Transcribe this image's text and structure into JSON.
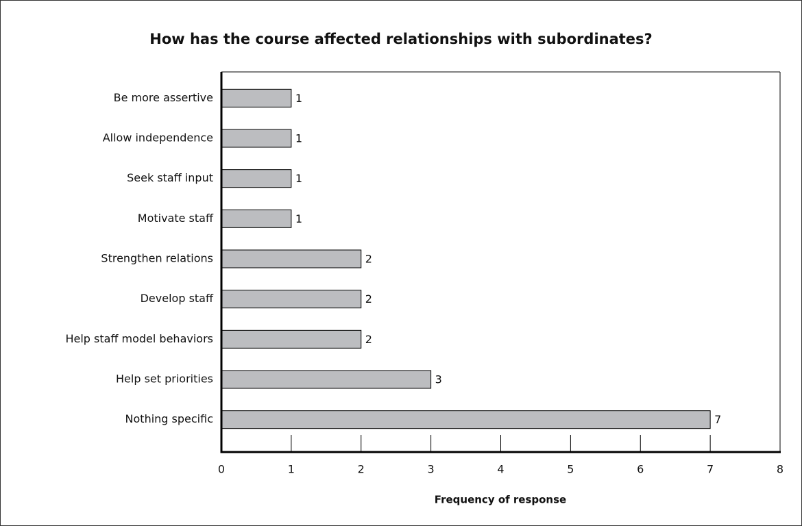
{
  "chart_data": {
    "type": "bar",
    "orientation": "horizontal",
    "title": "How has the course affected relationships with subordinates?",
    "x_label": "Frequency of response",
    "categories": [
      "Be more assertive",
      "Allow independence",
      "Seek staff input",
      "Motivate staff",
      "Strengthen relations",
      "Develop staff",
      "Help staff model behaviors",
      "Help set priorities",
      "Nothing specific"
    ],
    "values": [
      1,
      1,
      1,
      1,
      2,
      2,
      2,
      3,
      7
    ],
    "color": "#bcbdc0",
    "xlim": [
      0,
      8
    ],
    "xticks": [
      0,
      1,
      2,
      3,
      4,
      5,
      6,
      7,
      8
    ]
  }
}
